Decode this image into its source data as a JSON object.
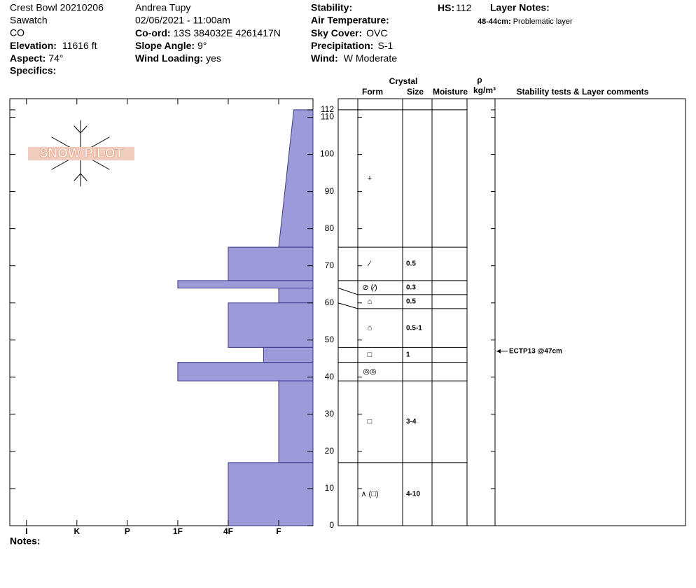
{
  "header": {
    "site": "Crest Bowl 20210206",
    "range": "Sawatch",
    "state": "CO",
    "elevation": [
      "Elevation:",
      "11616 ft"
    ],
    "aspect": [
      "Aspect:",
      "74°"
    ],
    "specifics": [
      "Specifics:"
    ],
    "observer": "Andrea Tupy",
    "datetime": "02/06/2021 - 11:00am",
    "coord": [
      "Co-ord:",
      "13S 384032E 4261417N"
    ],
    "slope_angle": [
      "Slope Angle:",
      "9°"
    ],
    "wind_loading": [
      "Wind Loading:",
      "yes"
    ],
    "stability": [
      "Stability:"
    ],
    "air_temperature": [
      "Air Temperature:"
    ],
    "sky_cover": [
      "Sky Cover:",
      "OVC"
    ],
    "precipitation": [
      "Precipitation:",
      "S-1"
    ],
    "wind": [
      "Wind:",
      "W Moderate"
    ],
    "hs": [
      "HS:",
      "112"
    ],
    "layer_notes": {
      "title": "Layer Notes:",
      "items": [
        [
          "48-44cm:",
          "Problematic layer"
        ]
      ]
    }
  },
  "logo": "SNOW PILOT",
  "columns": {
    "crystal": "Crystal",
    "form": "Form",
    "size": "Size",
    "moisture": "Moisture",
    "density": "ρ",
    "density_unit": "kg/m³",
    "comments": "Stability tests & Layer comments"
  },
  "notes": "Notes:",
  "chart_data": {
    "type": "snow_profile",
    "color": "#9c9ad8",
    "ylim": [
      0,
      115
    ],
    "yticks": [
      0,
      10,
      20,
      30,
      40,
      50,
      60,
      70,
      80,
      90,
      100,
      110,
      112
    ],
    "xlim": [
      6.33,
      0.32
    ],
    "xticks": [
      {
        "value": 6,
        "label": "I"
      },
      {
        "value": 5,
        "label": "K"
      },
      {
        "value": 4,
        "label": "P"
      },
      {
        "value": 3,
        "label": "1F"
      },
      {
        "value": 2,
        "label": "4F"
      },
      {
        "value": 1,
        "label": "F"
      }
    ],
    "layers": [
      {
        "top": 112,
        "bottom": 75,
        "hardness": [
          0.7,
          1
        ],
        "form": "+"
      },
      {
        "top": 75,
        "bottom": 66,
        "hardness": [
          2,
          2
        ],
        "form": "⁄",
        "size": "0.5"
      },
      {
        "top": 66,
        "bottom": 64,
        "hardness": [
          3,
          3
        ],
        "form": "⊘ (⁄)",
        "size": "0.3"
      },
      {
        "top": 64,
        "bottom": 60,
        "hardness": [
          1,
          1
        ],
        "form": "⌂",
        "size": "0.5"
      },
      {
        "top": 60,
        "bottom": 48,
        "hardness": [
          2,
          2
        ],
        "form": "⌂",
        "size": "0.5-1"
      },
      {
        "top": 48,
        "bottom": 44,
        "hardness": [
          1.3,
          1.3
        ],
        "form": "□",
        "size": "1"
      },
      {
        "top": 44,
        "bottom": 39,
        "hardness": [
          3,
          3
        ],
        "form": "◎◎"
      },
      {
        "top": 39,
        "bottom": 17,
        "hardness": [
          1,
          1
        ],
        "form": "□",
        "size": "3-4"
      },
      {
        "top": 17,
        "bottom": 0,
        "hardness": [
          2,
          2
        ],
        "form": "∧ (□)",
        "size": "4-10"
      }
    ],
    "tests": [
      {
        "depth": 47,
        "label": "ECTP13 @47cm"
      }
    ]
  }
}
